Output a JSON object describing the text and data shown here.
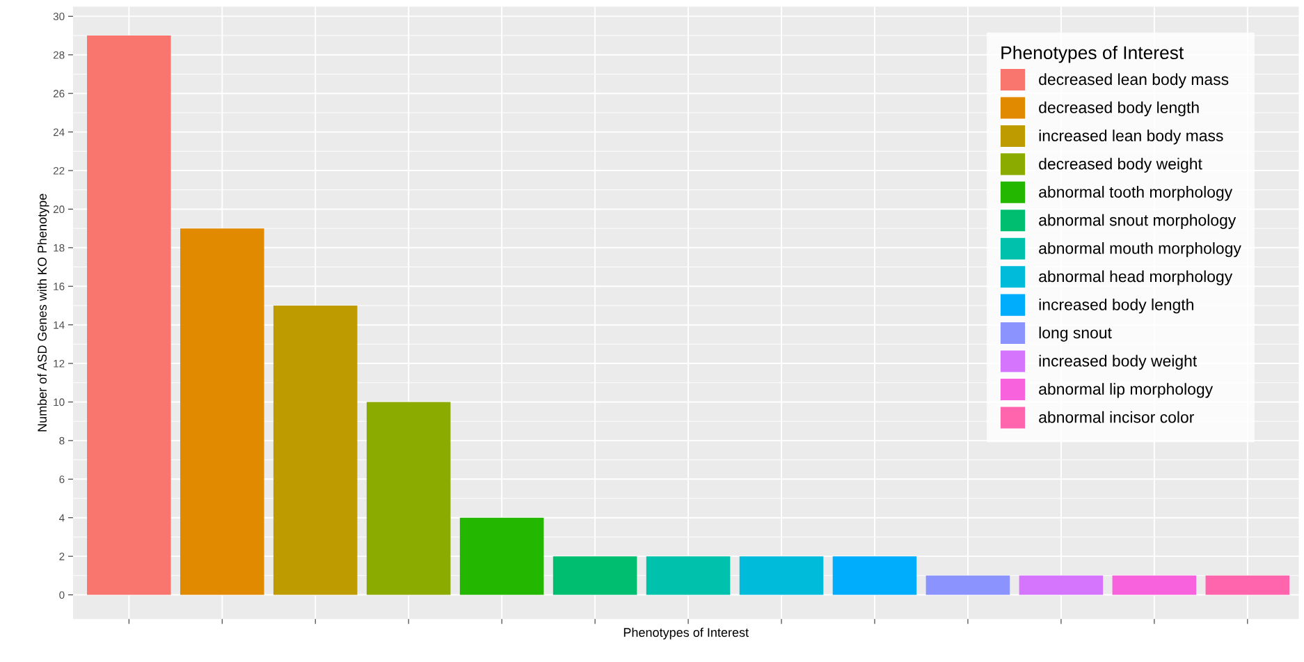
{
  "chart_data": {
    "type": "bar",
    "xlabel": "Phenotypes of Interest",
    "ylabel": "Number of ASD Genes with KO Phenotype",
    "legend_title": "Phenotypes of Interest",
    "categories": [
      null,
      null,
      null,
      null,
      null,
      null,
      null,
      null,
      null,
      null,
      null,
      null,
      null
    ],
    "series": [
      {
        "name": "decreased lean body mass",
        "color": "#f8766d",
        "values": [
          29,
          null,
          null,
          null,
          null,
          null,
          null,
          null,
          null,
          null,
          null,
          null,
          null
        ]
      },
      {
        "name": "decreased body length",
        "color": "#e18a00",
        "values": [
          null,
          19,
          null,
          null,
          null,
          null,
          null,
          null,
          null,
          null,
          null,
          null,
          null
        ]
      },
      {
        "name": "increased lean body mass",
        "color": "#be9c00",
        "values": [
          null,
          null,
          15,
          null,
          null,
          null,
          null,
          null,
          null,
          null,
          null,
          null,
          null
        ]
      },
      {
        "name": "decreased body weight",
        "color": "#8cab00",
        "values": [
          null,
          null,
          null,
          10,
          null,
          null,
          null,
          null,
          null,
          null,
          null,
          null,
          null
        ]
      },
      {
        "name": "abnormal tooth morphology",
        "color": "#24b700",
        "values": [
          null,
          null,
          null,
          null,
          4,
          null,
          null,
          null,
          null,
          null,
          null,
          null,
          null
        ]
      },
      {
        "name": "abnormal snout morphology",
        "color": "#00be70",
        "values": [
          null,
          null,
          null,
          null,
          null,
          2,
          null,
          null,
          null,
          null,
          null,
          null,
          null
        ]
      },
      {
        "name": "abnormal mouth morphology",
        "color": "#00c1ab",
        "values": [
          null,
          null,
          null,
          null,
          null,
          null,
          2,
          null,
          null,
          null,
          null,
          null,
          null
        ]
      },
      {
        "name": "abnormal head morphology",
        "color": "#00bbda",
        "values": [
          null,
          null,
          null,
          null,
          null,
          null,
          null,
          2,
          null,
          null,
          null,
          null,
          null
        ]
      },
      {
        "name": "increased body length",
        "color": "#00acfc",
        "values": [
          null,
          null,
          null,
          null,
          null,
          null,
          null,
          null,
          2,
          null,
          null,
          null,
          null
        ]
      },
      {
        "name": "long snout",
        "color": "#8b93ff",
        "values": [
          null,
          null,
          null,
          null,
          null,
          null,
          null,
          null,
          null,
          1,
          null,
          null,
          null
        ]
      },
      {
        "name": "increased body weight",
        "color": "#d575fe",
        "values": [
          null,
          null,
          null,
          null,
          null,
          null,
          null,
          null,
          null,
          null,
          1,
          null,
          null
        ]
      },
      {
        "name": "abnormal lip morphology",
        "color": "#f962dd",
        "values": [
          null,
          null,
          null,
          null,
          null,
          null,
          null,
          null,
          null,
          null,
          null,
          1,
          null
        ]
      },
      {
        "name": "abnormal incisor color",
        "color": "#ff65ac",
        "values": [
          null,
          null,
          null,
          null,
          null,
          null,
          null,
          null,
          null,
          null,
          null,
          null,
          1
        ]
      }
    ],
    "ylim": [
      -1.25,
      30.5
    ],
    "yticks": [
      0,
      2,
      4,
      6,
      8,
      10,
      12,
      14,
      16,
      18,
      20,
      22,
      24,
      26,
      28,
      30
    ],
    "grid": true,
    "legend": "top right",
    "tick_labels": "y"
  }
}
